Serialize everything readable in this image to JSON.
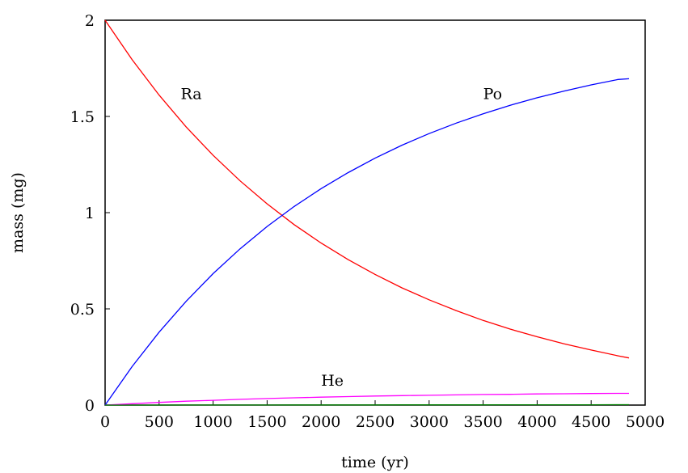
{
  "chart_data": {
    "type": "line",
    "title": "",
    "xlabel": "time (yr)",
    "ylabel": "mass (mg)",
    "xlim": [
      0,
      5000
    ],
    "ylim": [
      0,
      2
    ],
    "x_ticks": [
      "0",
      "500",
      "1000",
      "1500",
      "2000",
      "2500",
      "3000",
      "3500",
      "4000",
      "4500",
      "5000"
    ],
    "y_ticks": [
      "0",
      "0.5",
      "1",
      "1.5",
      "2"
    ],
    "grid": false,
    "legend": "none",
    "x": [
      0,
      250,
      500,
      750,
      1000,
      1250,
      1500,
      1750,
      2000,
      2250,
      2500,
      2750,
      3000,
      3250,
      3500,
      3750,
      4000,
      4250,
      4500,
      4750,
      4850
    ],
    "series": [
      {
        "name": "Ra",
        "color": "#ff0000",
        "label_at": [
          700,
          1.59
        ],
        "values": [
          2.0,
          1.795,
          1.611,
          1.446,
          1.298,
          1.165,
          1.046,
          0.938,
          0.842,
          0.756,
          0.679,
          0.609,
          0.547,
          0.491,
          0.44,
          0.395,
          0.355,
          0.318,
          0.286,
          0.256,
          0.245
        ]
      },
      {
        "name": "Po",
        "color": "#0000ff",
        "label_at": [
          3500,
          1.59
        ],
        "values": [
          0.0,
          0.2,
          0.379,
          0.539,
          0.683,
          0.812,
          0.928,
          1.032,
          1.125,
          1.208,
          1.283,
          1.351,
          1.411,
          1.465,
          1.514,
          1.558,
          1.597,
          1.632,
          1.664,
          1.692,
          1.696
        ]
      },
      {
        "name": "He",
        "color": "#ff00ff",
        "label_at": [
          2000,
          0.1
        ],
        "values": [
          0.0,
          0.007,
          0.014,
          0.02,
          0.025,
          0.03,
          0.034,
          0.038,
          0.041,
          0.044,
          0.047,
          0.049,
          0.051,
          0.053,
          0.055,
          0.056,
          0.058,
          0.059,
          0.06,
          0.061,
          0.061
        ]
      },
      {
        "name": "",
        "color": "#008000",
        "values": [
          0,
          0.0001,
          0.0002,
          0.0003,
          0.0004,
          0.0005,
          0.0006,
          0.0007,
          0.0008,
          0.0009,
          0.001,
          0.0011,
          0.0012,
          0.0013,
          0.0014,
          0.0015,
          0.0016,
          0.0017,
          0.0018,
          0.0019,
          0.002
        ]
      }
    ]
  }
}
